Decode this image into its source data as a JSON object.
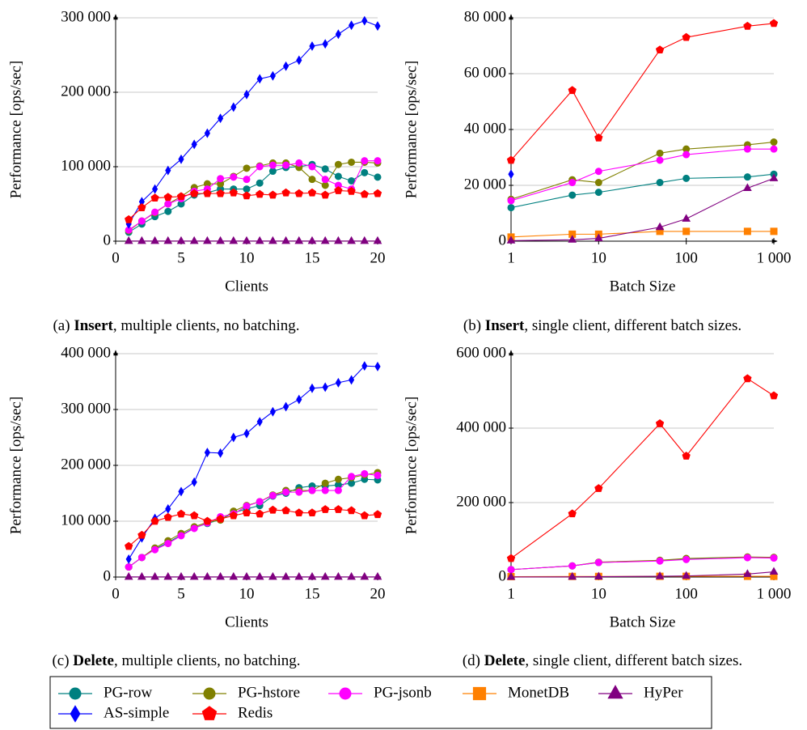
{
  "chart_data": [
    {
      "type": "line",
      "ylabel": "Performance [ops/sec]",
      "xlabel": "Clients",
      "caption": {
        "label": "(a)",
        "bold": "Insert",
        "text": ", multiple clients, no batching."
      },
      "xscale": "linear",
      "grid": true,
      "x": [
        1,
        2,
        3,
        4,
        5,
        6,
        7,
        8,
        9,
        10,
        11,
        12,
        13,
        14,
        15,
        16,
        17,
        18,
        19,
        20
      ],
      "xlim": [
        0,
        20
      ],
      "xticks": [
        0,
        5,
        10,
        15,
        20
      ],
      "ylim": [
        0,
        300000
      ],
      "yticks": [
        0,
        {
          "value": 100000,
          "label": "100 000"
        },
        {
          "value": 200000,
          "label": "200 000"
        },
        {
          "value": 300000,
          "label": "300 000"
        }
      ],
      "series": [
        {
          "name": "PG-row",
          "color": "#008080",
          "marker": "circle",
          "values": [
            12000,
            23000,
            33000,
            40000,
            50000,
            62000,
            65000,
            70000,
            70000,
            70000,
            78000,
            94000,
            99000,
            100000,
            103000,
            97000,
            87000,
            81000,
            92000,
            86000
          ]
        },
        {
          "name": "PG-hstore",
          "color": "#808000",
          "marker": "circle",
          "values": [
            14000,
            27000,
            38000,
            50000,
            60000,
            72000,
            77000,
            77000,
            87000,
            98000,
            101000,
            105000,
            105000,
            99000,
            83000,
            75000,
            103000,
            106000,
            106000,
            105000
          ]
        },
        {
          "name": "PG-jsonb",
          "color": "#ff00ff",
          "marker": "circle",
          "values": [
            15000,
            27000,
            39000,
            50000,
            57000,
            67000,
            70000,
            84000,
            86000,
            83000,
            100000,
            102000,
            102000,
            105000,
            100000,
            83000,
            75000,
            70000,
            108000,
            108000
          ]
        },
        {
          "name": "HyPer",
          "color": "#800080",
          "marker": "triangle",
          "values": [
            200,
            200,
            200,
            200,
            200,
            200,
            200,
            200,
            200,
            200,
            200,
            200,
            200,
            200,
            200,
            200,
            200,
            200,
            200,
            200
          ]
        },
        {
          "name": "AS-simple",
          "color": "#0000ff",
          "marker": "diamond",
          "values": [
            23000,
            53000,
            70000,
            95000,
            110000,
            130000,
            145000,
            165000,
            180000,
            197000,
            218000,
            222000,
            235000,
            243000,
            262000,
            265000,
            278000,
            290000,
            296000,
            289000
          ]
        },
        {
          "name": "Redis",
          "color": "#ff0000",
          "marker": "pentagon",
          "values": [
            29000,
            45000,
            58000,
            59000,
            60000,
            64000,
            64000,
            64000,
            65000,
            61000,
            63000,
            62000,
            65000,
            64000,
            65000,
            62000,
            68000,
            67000,
            63000,
            64000
          ]
        }
      ]
    },
    {
      "type": "line",
      "ylabel": "Performance [ops/sec]",
      "xlabel": "Batch Size",
      "caption": {
        "label": "(b)",
        "bold": "Insert",
        "text": ", single client, different batch sizes."
      },
      "xscale": "log",
      "grid": true,
      "x": [
        1,
        5,
        10,
        50,
        100,
        500,
        1000
      ],
      "xlim": [
        1,
        1000
      ],
      "xticks": [
        1,
        10,
        100,
        {
          "value": 1000,
          "label": "1 000"
        }
      ],
      "ylim": [
        0,
        80000
      ],
      "yticks": [
        0,
        {
          "value": 20000,
          "label": "20 000"
        },
        {
          "value": 40000,
          "label": "40 000"
        },
        {
          "value": 60000,
          "label": "60 000"
        },
        {
          "value": 80000,
          "label": "80 000"
        }
      ],
      "series": [
        {
          "name": "PG-row",
          "color": "#008080",
          "marker": "circle",
          "values": [
            12000,
            16500,
            17500,
            21000,
            22500,
            23000,
            24000
          ]
        },
        {
          "name": "PG-hstore",
          "color": "#808000",
          "marker": "circle",
          "values": [
            15000,
            22000,
            21000,
            31500,
            33000,
            34500,
            35500
          ]
        },
        {
          "name": "PG-jsonb",
          "color": "#ff00ff",
          "marker": "circle",
          "values": [
            14500,
            21000,
            25000,
            29000,
            31000,
            33000,
            33000
          ]
        },
        {
          "name": "MonetDB",
          "color": "#ff8000",
          "marker": "square",
          "values": [
            1500,
            2500,
            2500,
            3500,
            3500,
            3500,
            3500
          ]
        },
        {
          "name": "HyPer",
          "color": "#800080",
          "marker": "triangle",
          "values": [
            200,
            500,
            1000,
            5000,
            8000,
            19000,
            22500
          ]
        },
        {
          "name": "AS-simple",
          "color": "#0000ff",
          "marker": "diamond",
          "values": [
            24000,
            null,
            null,
            null,
            null,
            null,
            null
          ]
        },
        {
          "name": "Redis",
          "color": "#ff0000",
          "marker": "pentagon",
          "values": [
            29000,
            54000,
            37000,
            68500,
            73000,
            77000,
            78000
          ]
        }
      ]
    },
    {
      "type": "line",
      "ylabel": "Performance [ops/sec]",
      "xlabel": "Clients",
      "caption": {
        "label": "(c)",
        "bold": "Delete",
        "text": ", multiple clients, no batching."
      },
      "xscale": "linear",
      "grid": true,
      "x": [
        1,
        2,
        3,
        4,
        5,
        6,
        7,
        8,
        9,
        10,
        11,
        12,
        13,
        14,
        15,
        16,
        17,
        18,
        19,
        20
      ],
      "xlim": [
        0,
        20
      ],
      "xticks": [
        0,
        5,
        10,
        15,
        20
      ],
      "ylim": [
        0,
        400000
      ],
      "yticks": [
        0,
        {
          "value": 100000,
          "label": "100 000"
        },
        {
          "value": 200000,
          "label": "200 000"
        },
        {
          "value": 300000,
          "label": "300 000"
        },
        {
          "value": 400000,
          "label": "400 000"
        }
      ],
      "series": [
        {
          "name": "PG-row",
          "color": "#008080",
          "marker": "circle",
          "values": [
            18000,
            35000,
            50000,
            62000,
            75000,
            88000,
            96000,
            103000,
            115000,
            122000,
            128000,
            145000,
            150000,
            160000,
            163000,
            163000,
            165000,
            168000,
            175000,
            174000
          ]
        },
        {
          "name": "PG-hstore",
          "color": "#808000",
          "marker": "circle",
          "values": [
            18000,
            35000,
            52000,
            65000,
            78000,
            90000,
            98000,
            102000,
            118000,
            128000,
            135000,
            147000,
            155000,
            155000,
            155000,
            168000,
            175000,
            178000,
            183000,
            187000
          ]
        },
        {
          "name": "PG-jsonb",
          "color": "#ff00ff",
          "marker": "circle",
          "values": [
            18000,
            35000,
            49000,
            60000,
            74000,
            87000,
            97000,
            108000,
            113000,
            127000,
            135000,
            146000,
            152000,
            152000,
            155000,
            155000,
            155000,
            180000,
            185000,
            182000
          ]
        },
        {
          "name": "HyPer",
          "color": "#800080",
          "marker": "triangle",
          "values": [
            200,
            200,
            200,
            200,
            200,
            200,
            200,
            200,
            200,
            200,
            200,
            200,
            200,
            200,
            200,
            200,
            200,
            200,
            200,
            200
          ]
        },
        {
          "name": "AS-simple",
          "color": "#0000ff",
          "marker": "diamond",
          "values": [
            32000,
            70000,
            105000,
            122000,
            153000,
            170000,
            223000,
            222000,
            250000,
            257000,
            278000,
            296000,
            305000,
            318000,
            338000,
            340000,
            348000,
            353000,
            378000,
            377000
          ]
        },
        {
          "name": "Redis",
          "color": "#ff0000",
          "marker": "pentagon",
          "values": [
            55000,
            75000,
            100000,
            107000,
            113000,
            110000,
            100000,
            104000,
            110000,
            115000,
            113000,
            120000,
            119000,
            115000,
            115000,
            121000,
            121000,
            119000,
            110000,
            112000
          ]
        }
      ]
    },
    {
      "type": "line",
      "ylabel": "Performance [ops/sec]",
      "xlabel": "Batch Size",
      "caption": {
        "label": "(d)",
        "bold": "Delete",
        "text": ", single client, different batch sizes."
      },
      "xscale": "log",
      "grid": true,
      "x": [
        1,
        5,
        10,
        50,
        100,
        500,
        1000
      ],
      "xlim": [
        1,
        1000
      ],
      "xticks": [
        1,
        10,
        100,
        {
          "value": 1000,
          "label": "1 000"
        }
      ],
      "ylim": [
        0,
        600000
      ],
      "yticks": [
        0,
        {
          "value": 200000,
          "label": "200 000"
        },
        {
          "value": 400000,
          "label": "400 000"
        },
        {
          "value": 600000,
          "label": "600 000"
        }
      ],
      "series": [
        {
          "name": "PG-row",
          "color": "#008080",
          "marker": "circle",
          "values": [
            20000,
            30000,
            39000,
            44000,
            48000,
            53000,
            52000
          ]
        },
        {
          "name": "PG-hstore",
          "color": "#808000",
          "marker": "circle",
          "values": [
            20000,
            30000,
            40000,
            45000,
            50000,
            54000,
            53000
          ]
        },
        {
          "name": "PG-jsonb",
          "color": "#ff00ff",
          "marker": "circle",
          "values": [
            20000,
            30000,
            39000,
            43000,
            47000,
            52000,
            51000
          ]
        },
        {
          "name": "MonetDB",
          "color": "#ff8000",
          "marker": "square",
          "values": [
            1000,
            1500,
            1500,
            2000,
            2000,
            2000,
            2000
          ]
        },
        {
          "name": "HyPer",
          "color": "#800080",
          "marker": "triangle",
          "values": [
            200,
            500,
            1000,
            2000,
            3000,
            8000,
            14000
          ]
        },
        {
          "name": "Redis",
          "color": "#ff0000",
          "marker": "pentagon",
          "values": [
            50000,
            170000,
            238000,
            412000,
            325000,
            533000,
            487000
          ]
        }
      ]
    }
  ]
}
